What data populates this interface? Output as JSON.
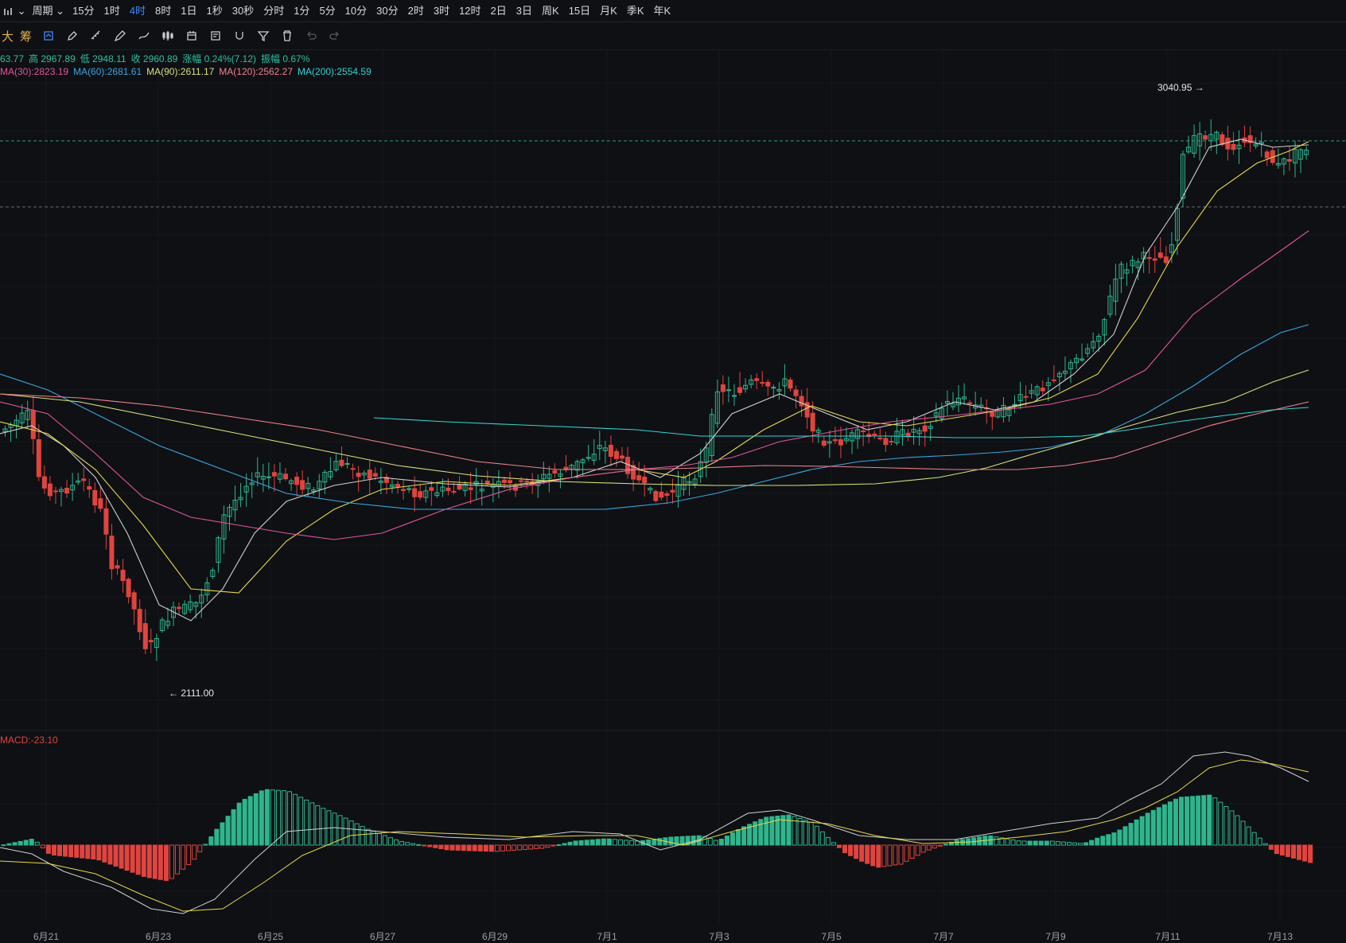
{
  "topbar": {
    "chart_icon": "candlestick-icon",
    "period_menu": "周期",
    "periods": [
      "15分",
      "1时",
      "4时",
      "8时",
      "1日",
      "1秒",
      "30秒",
      "分时",
      "1分",
      "5分",
      "10分",
      "30分",
      "2时",
      "3时",
      "12时",
      "2日",
      "3日",
      "周K",
      "15日",
      "月K",
      "季K",
      "年K"
    ],
    "active_period": "4时"
  },
  "toolbar": {
    "label_a": "大",
    "label_b": "筹",
    "tools": [
      "indicator-icon",
      "brush-icon",
      "ruler-icon",
      "pen-icon",
      "draw-icon",
      "candles-icon",
      "calendar-icon",
      "note-icon",
      "magnet-icon",
      "filter-icon",
      "trash-icon",
      "undo-icon",
      "redo-icon"
    ]
  },
  "info": {
    "ohlc": [
      "63.77",
      "高 2967.89",
      "低 2948.11",
      "收 2960.89",
      "涨幅 0.24%(7.12)",
      "振幅 0.67%"
    ],
    "ma": [
      {
        "text": "MA(30):2823.19",
        "color": "#e2559d"
      },
      {
        "text": "MA(60):2681.61",
        "color": "#3aa7e0"
      },
      {
        "text": "MA(90):2611.17",
        "color": "#d7e07a"
      },
      {
        "text": "MA(120):2562.27",
        "color": "#f0808a"
      },
      {
        "text": "MA(200):2554.59",
        "color": "#34d3d3"
      }
    ]
  },
  "macd": {
    "label": "MACD:-23.10"
  },
  "annotations": {
    "high": "3040.95",
    "low": "2111.00"
  },
  "colors": {
    "up": "#2fb58c",
    "down": "#e0443f",
    "bg": "#0e1014",
    "grid": "#1a1d23"
  },
  "chart_data": {
    "type": "candlestick",
    "interval": "4时",
    "x_labels": [
      "6月21",
      "6月23",
      "6月25",
      "6月27",
      "6月29",
      "7月1",
      "7月3",
      "7月5",
      "7月7",
      "7月9",
      "7月11",
      "7月13"
    ],
    "ylim": [
      2080,
      3080
    ],
    "y_annotation_high": 3040.95,
    "y_annotation_low": 2111.0,
    "series": [
      {
        "name": "MA(30)",
        "last": 2823.19
      },
      {
        "name": "MA(60)",
        "last": 2681.61
      },
      {
        "name": "MA(90)",
        "last": 2611.17
      },
      {
        "name": "MA(120)",
        "last": 2562.27
      },
      {
        "name": "MA(200)",
        "last": 2554.59
      }
    ],
    "macd_last": -23.1
  }
}
